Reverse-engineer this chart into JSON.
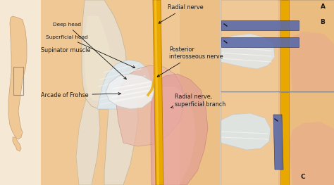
{
  "fig_width": 4.74,
  "fig_height": 2.63,
  "dpi": 100,
  "bg_color": "#f5e8d5",
  "skin_light": "#f0c896",
  "skin_mid": "#e8b878",
  "skin_dark": "#d4956a",
  "bone_color": "#e8dcc8",
  "bone_edge": "#c8b898",
  "muscle_white": "#e8e8e8",
  "muscle_gray": "#c8c8c8",
  "muscle_pink": "#e8a898",
  "muscle_red": "#cc7060",
  "nerve_yellow": "#e8a800",
  "nerve_yellow_edge": "#b87800",
  "nerve_blue": "#5868a8",
  "nerve_blue_edge": "#283878",
  "label_color": "#1a1a1a",
  "panel_border": "#888888",
  "labels": {
    "radial_nerve": "Radial nerve",
    "posterior_interosseous": "Posterior\ninterosseous nerve",
    "arcade_of_frohse": "Arcade of Frohse",
    "supinator_muscle": "Supinator muscle",
    "superficial_head": "Superficial head",
    "deep_head": "Deep head",
    "radial_nerve_superficial": "Radial nerve,\nsuperficial branch",
    "A": "A",
    "B": "B",
    "C": "C"
  }
}
